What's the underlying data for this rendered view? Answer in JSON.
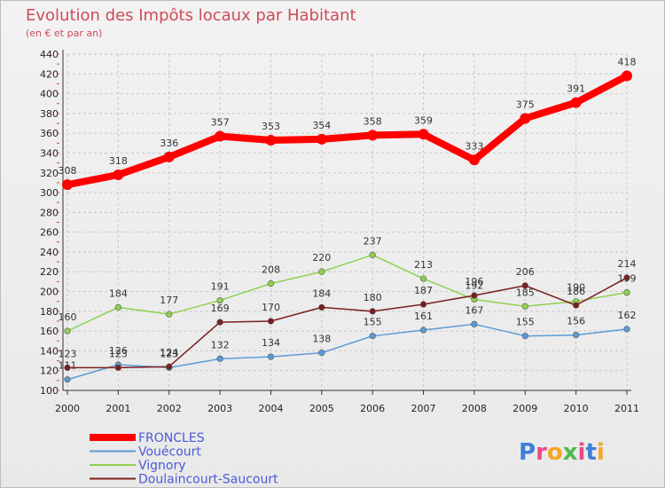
{
  "chart_data": {
    "type": "line",
    "title": "Evolution des Impôts locaux par Habitant",
    "subtitle": "(en € et par an)",
    "xlabel": "",
    "ylabel": "",
    "x": [
      "2000",
      "2001",
      "2002",
      "2003",
      "2004",
      "2005",
      "2006",
      "2007",
      "2008",
      "2009",
      "2010",
      "2011"
    ],
    "ylim": [
      100,
      440
    ],
    "yticks": [
      100,
      120,
      140,
      160,
      180,
      200,
      220,
      240,
      260,
      280,
      300,
      320,
      340,
      360,
      380,
      400,
      420,
      440
    ],
    "grid": true,
    "legend_position": "bottom-left",
    "series": [
      {
        "name": "FRONCLES",
        "color": "#ff0000",
        "values": [
          308,
          318,
          336,
          357,
          353,
          354,
          358,
          359,
          333,
          375,
          391,
          418
        ]
      },
      {
        "name": "Vouécourt",
        "color": "#5b9bd5",
        "values": [
          111,
          126,
          123,
          132,
          134,
          138,
          155,
          161,
          167,
          155,
          156,
          162
        ]
      },
      {
        "name": "Vignory",
        "color": "#8fd14f",
        "values": [
          160,
          184,
          177,
          191,
          208,
          220,
          237,
          213,
          192,
          185,
          190,
          199
        ]
      },
      {
        "name": "Doulaincourt-Saucourt",
        "color": "#7b1e1e",
        "values": [
          123,
          123,
          124,
          169,
          170,
          184,
          180,
          187,
          196,
          206,
          186,
          214
        ]
      }
    ]
  },
  "logo": {
    "text": "Proxiti",
    "letters": [
      "P",
      "r",
      "o",
      "x",
      "i",
      "t",
      "i"
    ],
    "colors": [
      "#3f7fd6",
      "#e84b8a",
      "#f5a623",
      "#4fb84f",
      "#e84b8a",
      "#3f7fd6",
      "#f5a623"
    ]
  }
}
